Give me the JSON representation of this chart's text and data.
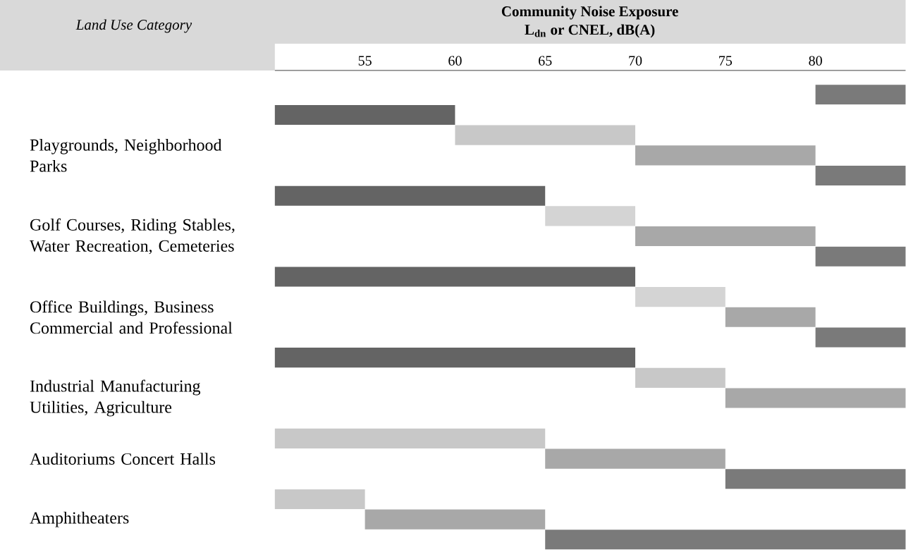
{
  "chart_data": {
    "type": "bar",
    "orientation": "horizontal",
    "title": "Community Noise Exposure",
    "subtitle": "L$_{dn}$ or CNEL, dB(A)",
    "ylabel": "Land Use Category",
    "categories": [
      null,
      null,
      null,
      "Playgrounds, Neighborhood Parks",
      null,
      null,
      null,
      "Golf Courses, Riding Stables, Water Recreation, Cemeteries",
      null,
      null,
      null,
      "Office Buildings, Business Commercial and Professional",
      null,
      null,
      null,
      "Industrial Manufacturing Utilities, Agriculture",
      null,
      null,
      "Auditoriums Concert Halls",
      null,
      null,
      "Amphitheaters",
      null
    ],
    "values": [
      5,
      10,
      10,
      10,
      5,
      15,
      5,
      10,
      5,
      20,
      5,
      5,
      5,
      20,
      5,
      10,
      null,
      15,
      10,
      10,
      5,
      10,
      20
    ],
    "base": [
      80,
      50,
      60,
      70,
      80,
      50,
      65,
      70,
      80,
      50,
      70,
      75,
      80,
      50,
      70,
      75,
      null,
      50,
      65,
      75,
      50,
      55,
      65
    ],
    "colors": [
      "#7a7a7a",
      "#646464",
      "#c8c8c8",
      "#a8a8a8",
      "#7a7a7a",
      "#646464",
      "#d4d4d4",
      "#a8a8a8",
      "#7a7a7a",
      "#646464",
      "#d4d4d4",
      "#a8a8a8",
      "#7a7a7a",
      "#646464",
      "#c8c8c8",
      "#a8a8a8",
      null,
      "#c8c8c8",
      "#a8a8a8",
      "#7a7a7a",
      "#c8c8c8",
      "#a8a8a8",
      "#7a7a7a"
    ],
    "xlim": [
      50,
      85
    ],
    "xticks": [
      55,
      60,
      65,
      70,
      75,
      80
    ]
  }
}
